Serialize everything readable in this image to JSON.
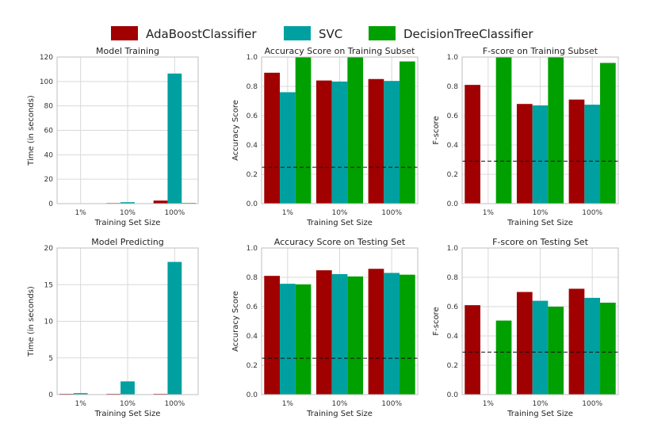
{
  "legend": [
    {
      "name": "AdaBoostClassifier",
      "color": "#a00000"
    },
    {
      "name": "SVC",
      "color": "#00a0a0"
    },
    {
      "name": "DecisionTreeClassifier",
      "color": "#00a000"
    }
  ],
  "chart_data": [
    {
      "id": "train-time",
      "type": "bar",
      "title": "Model Training",
      "xlabel": "Training Set Size",
      "ylabel": "Time (in seconds)",
      "categories": [
        "1%",
        "10%",
        "100%"
      ],
      "ylim": [
        0,
        120
      ],
      "yticks": [
        0,
        20,
        40,
        60,
        80,
        100,
        120
      ],
      "ytick_labels": [
        "0",
        "20",
        "40",
        "60",
        "80",
        "100",
        "120"
      ],
      "series": [
        {
          "name": "AdaBoostClassifier",
          "values": [
            0.1,
            0.5,
            2.5
          ]
        },
        {
          "name": "SVC",
          "values": [
            0.1,
            1.2,
            106.5
          ]
        },
        {
          "name": "DecisionTreeClassifier",
          "values": [
            0.05,
            0.1,
            0.6
          ]
        }
      ]
    },
    {
      "id": "train-acc",
      "type": "bar",
      "title": "Accuracy Score on Training Subset",
      "xlabel": "Training Set Size",
      "ylabel": "Accuracy Score",
      "categories": [
        "1%",
        "10%",
        "100%"
      ],
      "ylim": [
        0,
        1
      ],
      "yticks": [
        0,
        0.2,
        0.4,
        0.6,
        0.8,
        1.0
      ],
      "ytick_labels": [
        "0.0",
        "0.2",
        "0.4",
        "0.6",
        "0.8",
        "1.0"
      ],
      "baseline": 0.248,
      "series": [
        {
          "name": "AdaBoostClassifier",
          "values": [
            0.893,
            0.84,
            0.85
          ]
        },
        {
          "name": "SVC",
          "values": [
            0.76,
            0.833,
            0.837
          ]
        },
        {
          "name": "DecisionTreeClassifier",
          "values": [
            1.0,
            1.0,
            0.97
          ]
        }
      ]
    },
    {
      "id": "train-f",
      "type": "bar",
      "title": "F-score on Training Subset",
      "xlabel": "Training Set Size",
      "ylabel": "F-score",
      "categories": [
        "1%",
        "10%",
        "100%"
      ],
      "ylim": [
        0,
        1
      ],
      "yticks": [
        0,
        0.2,
        0.4,
        0.6,
        0.8,
        1.0
      ],
      "ytick_labels": [
        "0.0",
        "0.2",
        "0.4",
        "0.6",
        "0.8",
        "1.0"
      ],
      "baseline": 0.29,
      "series": [
        {
          "name": "AdaBoostClassifier",
          "values": [
            0.81,
            0.68,
            0.71
          ]
        },
        {
          "name": "SVC",
          "values": [
            0.0,
            0.67,
            0.675
          ]
        },
        {
          "name": "DecisionTreeClassifier",
          "values": [
            1.0,
            1.0,
            0.96
          ]
        }
      ]
    },
    {
      "id": "pred-time",
      "type": "bar",
      "title": "Model Predicting",
      "xlabel": "Training Set Size",
      "ylabel": "Time (in seconds)",
      "categories": [
        "1%",
        "10%",
        "100%"
      ],
      "ylim": [
        0,
        20
      ],
      "yticks": [
        0,
        5,
        10,
        15,
        20
      ],
      "ytick_labels": [
        "0",
        "5",
        "10",
        "15",
        "20"
      ],
      "series": [
        {
          "name": "AdaBoostClassifier",
          "values": [
            0.1,
            0.1,
            0.1
          ]
        },
        {
          "name": "SVC",
          "values": [
            0.2,
            1.8,
            18.1
          ]
        },
        {
          "name": "DecisionTreeClassifier",
          "values": [
            0.02,
            0.02,
            0.03
          ]
        }
      ]
    },
    {
      "id": "test-acc",
      "type": "bar",
      "title": "Accuracy Score on Testing Set",
      "xlabel": "Training Set Size",
      "ylabel": "Accuracy Score",
      "categories": [
        "1%",
        "10%",
        "100%"
      ],
      "ylim": [
        0,
        1
      ],
      "yticks": [
        0,
        0.2,
        0.4,
        0.6,
        0.8,
        1.0
      ],
      "ytick_labels": [
        "0.0",
        "0.2",
        "0.4",
        "0.6",
        "0.8",
        "1.0"
      ],
      "baseline": 0.248,
      "series": [
        {
          "name": "AdaBoostClassifier",
          "values": [
            0.81,
            0.848,
            0.858
          ]
        },
        {
          "name": "SVC",
          "values": [
            0.756,
            0.822,
            0.83
          ]
        },
        {
          "name": "DecisionTreeClassifier",
          "values": [
            0.752,
            0.806,
            0.818
          ]
        }
      ]
    },
    {
      "id": "test-f",
      "type": "bar",
      "title": "F-score on Testing Set",
      "xlabel": "Training Set Size",
      "ylabel": "F-score",
      "categories": [
        "1%",
        "10%",
        "100%"
      ],
      "ylim": [
        0,
        1
      ],
      "yticks": [
        0,
        0.2,
        0.4,
        0.6,
        0.8,
        1.0
      ],
      "ytick_labels": [
        "0.0",
        "0.2",
        "0.4",
        "0.6",
        "0.8",
        "1.0"
      ],
      "baseline": 0.29,
      "series": [
        {
          "name": "AdaBoostClassifier",
          "values": [
            0.61,
            0.7,
            0.722
          ]
        },
        {
          "name": "SVC",
          "values": [
            0.0,
            0.64,
            0.66
          ]
        },
        {
          "name": "DecisionTreeClassifier",
          "values": [
            0.505,
            0.6,
            0.627
          ]
        }
      ]
    }
  ]
}
